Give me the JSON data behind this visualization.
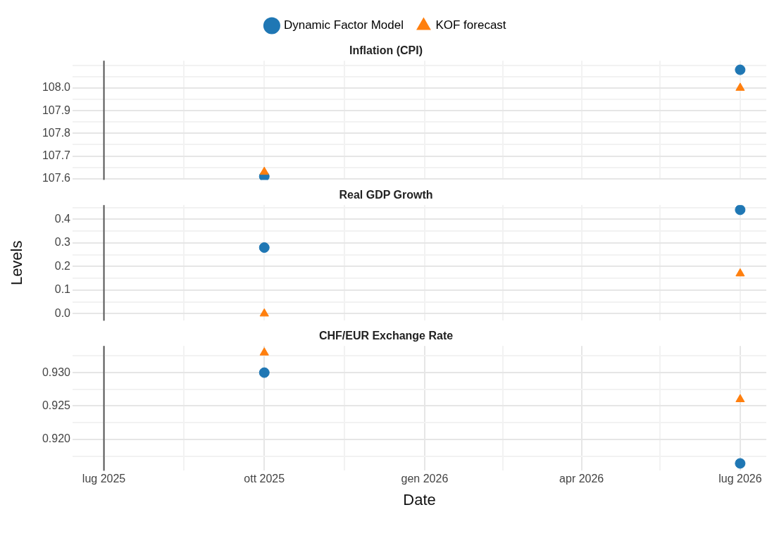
{
  "chart_data": [
    {
      "type": "scatter",
      "title": "Inflation (CPI)",
      "legend": "top",
      "grid": true,
      "tick_labels": "y",
      "x": [
        "2025-10-01",
        "2026-07-01"
      ],
      "series": [
        {
          "name": "Dynamic Factor Model",
          "color": "#1f77b4",
          "marker": "circle",
          "values": [
            107.61,
            108.08
          ]
        },
        {
          "name": "KOF forecast",
          "color": "#ff7f0e",
          "marker": "triangle",
          "values": [
            107.63,
            108.0
          ]
        }
      ],
      "xlim": [
        "2025-06-13",
        "2026-07-16"
      ],
      "xticks": [
        {
          "value": "2025-07-01",
          "label": null
        },
        {
          "value": "2025-08-16",
          "label": null
        },
        {
          "value": "2025-10-01",
          "label": null
        },
        {
          "value": "2025-11-16",
          "label": null
        },
        {
          "value": "2026-01-01",
          "label": null
        },
        {
          "value": "2026-02-15",
          "label": null
        },
        {
          "value": "2026-04-01",
          "label": null
        },
        {
          "value": "2026-05-16",
          "label": null
        },
        {
          "value": "2026-07-01",
          "label": null
        }
      ],
      "ylim": [
        107.595,
        108.12
      ],
      "yticks": [
        {
          "value": 107.6,
          "label": "107.6"
        },
        {
          "value": 107.65,
          "label": null
        },
        {
          "value": 107.7,
          "label": "107.7"
        },
        {
          "value": 107.75,
          "label": null
        },
        {
          "value": 107.8,
          "label": "107.8"
        },
        {
          "value": 107.85,
          "label": null
        },
        {
          "value": 107.9,
          "label": "107.9"
        },
        {
          "value": 107.95,
          "label": null
        },
        {
          "value": 108.0,
          "label": "108.0"
        },
        {
          "value": 108.05,
          "label": null
        },
        {
          "value": 108.1,
          "label": null
        }
      ],
      "ref_lines": [
        {
          "axis": "x",
          "value": "2025-07-01",
          "color": "#555555"
        }
      ]
    },
    {
      "type": "scatter",
      "title": "Real GDP Growth",
      "ylabel": "Levels",
      "grid": true,
      "tick_labels": "y",
      "x": [
        "2025-10-01",
        "2026-07-01"
      ],
      "series": [
        {
          "color": "#1f77b4",
          "marker": "circle",
          "values": [
            0.28,
            0.44
          ]
        },
        {
          "color": "#ff7f0e",
          "marker": "triangle",
          "values": [
            0.0,
            0.17
          ]
        }
      ],
      "xlim": [
        "2025-06-13",
        "2026-07-16"
      ],
      "xticks": [
        {
          "value": "2025-07-01",
          "label": null
        },
        {
          "value": "2025-08-16",
          "label": null
        },
        {
          "value": "2025-10-01",
          "label": null
        },
        {
          "value": "2025-11-16",
          "label": null
        },
        {
          "value": "2026-01-01",
          "label": null
        },
        {
          "value": "2026-02-15",
          "label": null
        },
        {
          "value": "2026-04-01",
          "label": null
        },
        {
          "value": "2026-05-16",
          "label": null
        },
        {
          "value": "2026-07-01",
          "label": null
        }
      ],
      "ylim": [
        -0.03,
        0.46
      ],
      "yticks": [
        {
          "value": 0,
          "label": "0.0"
        },
        {
          "value": 0.05,
          "label": null
        },
        {
          "value": 0.1,
          "label": "0.1"
        },
        {
          "value": 0.15,
          "label": null
        },
        {
          "value": 0.2,
          "label": "0.2"
        },
        {
          "value": 0.25,
          "label": null
        },
        {
          "value": 0.3,
          "label": "0.3"
        },
        {
          "value": 0.35,
          "label": null
        },
        {
          "value": 0.4,
          "label": "0.4"
        },
        {
          "value": 0.45,
          "label": null
        }
      ],
      "ref_lines": [
        {
          "axis": "x",
          "value": "2025-07-01",
          "color": "#555555"
        }
      ]
    },
    {
      "type": "scatter",
      "title": "CHF/EUR Exchange Rate",
      "xlabel": "Date",
      "grid": true,
      "x": [
        "2025-10-01",
        "2026-07-01"
      ],
      "series": [
        {
          "color": "#1f77b4",
          "marker": "circle",
          "values": [
            0.93,
            0.9164
          ]
        },
        {
          "color": "#ff7f0e",
          "marker": "triangle",
          "values": [
            0.933,
            0.926
          ]
        }
      ],
      "xlim": [
        "2025-06-13",
        "2026-07-16"
      ],
      "xticks": [
        {
          "value": "2025-07-01",
          "label": "lug 2025"
        },
        {
          "value": "2025-08-16",
          "label": null
        },
        {
          "value": "2025-10-01",
          "label": "ott 2025"
        },
        {
          "value": "2025-11-16",
          "label": null
        },
        {
          "value": "2026-01-01",
          "label": "gen 2026"
        },
        {
          "value": "2026-02-15",
          "label": null
        },
        {
          "value": "2026-04-01",
          "label": "apr 2026"
        },
        {
          "value": "2026-05-16",
          "label": null
        },
        {
          "value": "2026-07-01",
          "label": "lug 2026"
        }
      ],
      "ylim": [
        0.9153,
        0.934
      ],
      "yticks": [
        {
          "value": 0.9175,
          "label": null
        },
        {
          "value": 0.92,
          "label": "0.920"
        },
        {
          "value": 0.9225,
          "label": null
        },
        {
          "value": 0.925,
          "label": "0.925"
        },
        {
          "value": 0.9275,
          "label": null
        },
        {
          "value": 0.93,
          "label": "0.930"
        },
        {
          "value": 0.9325,
          "label": null
        }
      ],
      "ref_lines": [
        {
          "axis": "x",
          "value": "2025-07-01",
          "color": "#555555"
        }
      ]
    }
  ]
}
